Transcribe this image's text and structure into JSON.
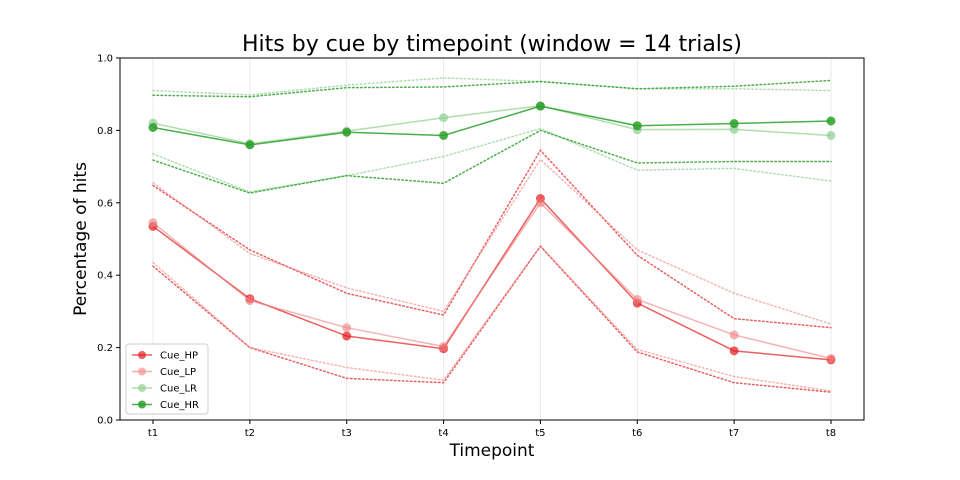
{
  "chart_data": {
    "type": "line",
    "title": "Hits by cue by timepoint (window = 14 trials)",
    "xlabel": "Timepoint",
    "ylabel": "Percentage of hits",
    "categories": [
      "t1",
      "t2",
      "t3",
      "t4",
      "t5",
      "t6",
      "t7",
      "t8"
    ],
    "ylim": [
      0.0,
      1.0
    ],
    "yticks": [
      "0.0",
      "0.2",
      "0.4",
      "0.6",
      "0.8",
      "1.0"
    ],
    "grid": "vertical",
    "legend_position": "lower-left",
    "series": [
      {
        "name": "Cue_HP",
        "color": "#e41a1c",
        "opacity": 0.7,
        "values": [
          0.535,
          0.335,
          0.232,
          0.197,
          0.612,
          0.323,
          0.191,
          0.166
        ],
        "upper": [
          0.648,
          0.47,
          0.35,
          0.29,
          0.745,
          0.455,
          0.28,
          0.255
        ],
        "lower": [
          0.425,
          0.2,
          0.115,
          0.103,
          0.48,
          0.188,
          0.103,
          0.077
        ]
      },
      {
        "name": "Cue_LP",
        "color": "#f08080",
        "opacity": 0.6,
        "values": [
          0.545,
          0.33,
          0.255,
          0.203,
          0.6,
          0.333,
          0.235,
          0.17
        ],
        "upper": [
          0.655,
          0.46,
          0.365,
          0.3,
          0.72,
          0.47,
          0.35,
          0.265
        ],
        "lower": [
          0.435,
          0.2,
          0.145,
          0.11,
          0.48,
          0.195,
          0.12,
          0.08
        ]
      },
      {
        "name": "Cue_LR",
        "color": "#8fd08f",
        "opacity": 0.7,
        "values": [
          0.82,
          0.763,
          0.798,
          0.835,
          0.868,
          0.802,
          0.803,
          0.786
        ],
        "upper": [
          0.91,
          0.898,
          0.925,
          0.945,
          0.935,
          0.915,
          0.915,
          0.91
        ],
        "lower": [
          0.735,
          0.63,
          0.675,
          0.728,
          0.805,
          0.69,
          0.695,
          0.66
        ]
      },
      {
        "name": "Cue_HR",
        "color": "#2ca02c",
        "opacity": 0.85,
        "values": [
          0.808,
          0.76,
          0.795,
          0.786,
          0.867,
          0.813,
          0.819,
          0.826
        ],
        "upper": [
          0.897,
          0.893,
          0.918,
          0.92,
          0.935,
          0.915,
          0.922,
          0.938
        ],
        "lower": [
          0.718,
          0.627,
          0.675,
          0.654,
          0.8,
          0.71,
          0.714,
          0.714
        ]
      }
    ]
  }
}
